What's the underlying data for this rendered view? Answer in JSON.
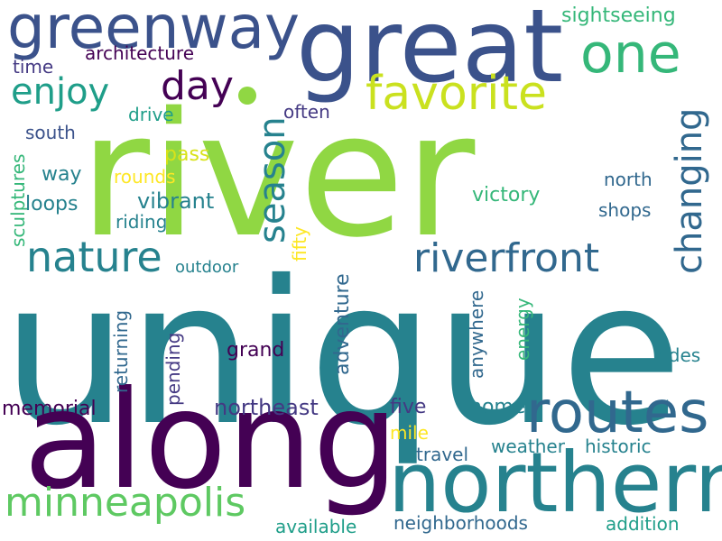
{
  "words": {
    "unique": "unique",
    "river": "river",
    "along": "along",
    "great": "great",
    "northern": "northern",
    "greenway": "greenway",
    "routes": "routes",
    "favorite": "favorite",
    "one": "one",
    "riverfront": "riverfront",
    "minneapolis": "minneapolis",
    "nature": "nature",
    "enjoy": "enjoy",
    "day": "day",
    "season": "season",
    "changing": "changing",
    "sightseeing": "sightseeing",
    "architecture": "architecture",
    "time": "time",
    "drive": "drive",
    "often": "often",
    "south": "south",
    "sculptures": "sculptures",
    "way": "way",
    "pass": "pass",
    "rounds": "rounds",
    "loops": "loops",
    "vibrant": "vibrant",
    "riding": "riding",
    "fifty": "fifty",
    "victory": "victory",
    "north": "north",
    "shops": "shops",
    "outdoor": "outdoor",
    "returning": "returning",
    "pending": "pending",
    "adventure": "adventure",
    "grand": "grand",
    "anywhere": "anywhere",
    "energy": "energy",
    "rides": "rides",
    "memorial": "memorial",
    "northeast": "northeast",
    "five": "five",
    "home": "home",
    "mile": "mile",
    "travel": "travel",
    "weather": "weather",
    "historic": "historic",
    "available": "available",
    "neighborhoods": "neighborhoods",
    "addition": "addition"
  },
  "colors": {
    "background": "#ffffff",
    "palette": [
      "#440154",
      "#3b528b",
      "#21918c",
      "#5ec962",
      "#fde725",
      "#31688e",
      "#35b779",
      "#90d743",
      "#b5de2b",
      "#443983",
      "#26828e",
      "#1f9e89",
      "#cae11f",
      "#d8e219"
    ]
  }
}
